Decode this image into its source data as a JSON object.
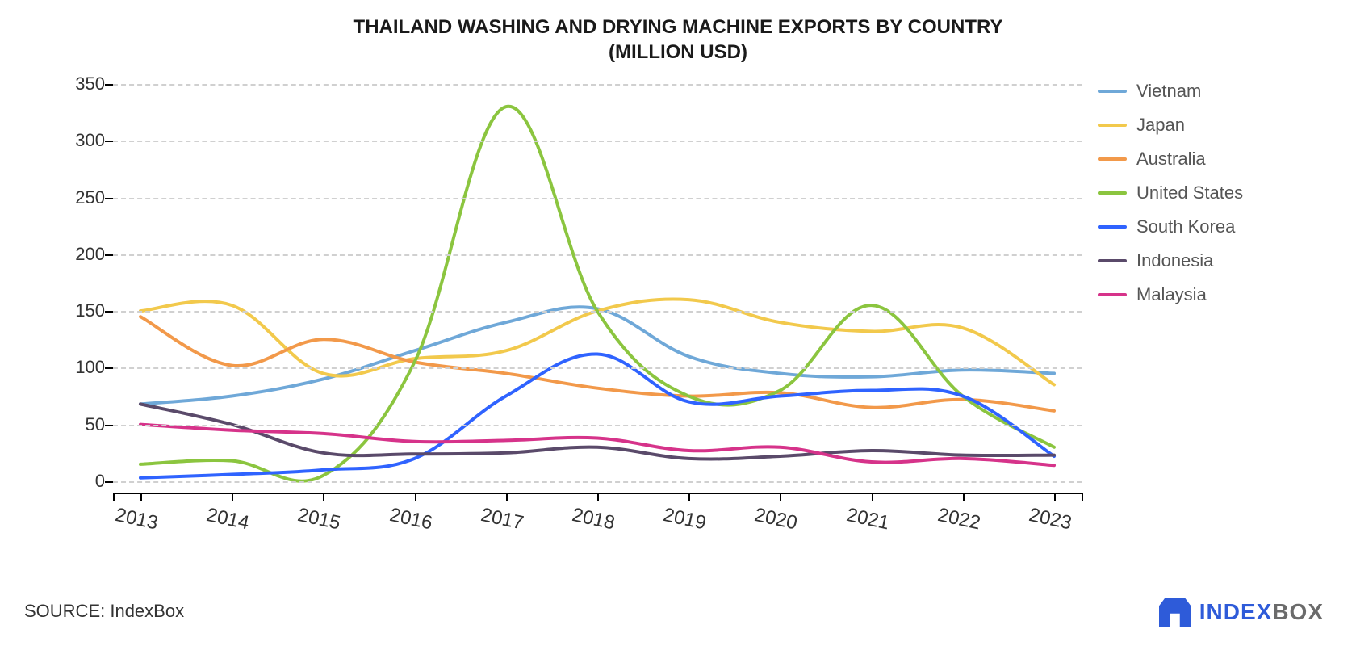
{
  "title_line1": "THAILAND WASHING AND DRYING MACHINE EXPORTS BY COUNTRY",
  "title_line2": "(MILLION USD)",
  "title_fontsize": 24,
  "title_color": "#1a1a1a",
  "source_label": "SOURCE: IndexBox",
  "logo": {
    "brand_a": "INDEX",
    "brand_b": "BOX",
    "color_a": "#2e5bd9",
    "color_b": "#6b6b6b"
  },
  "chart": {
    "type": "line",
    "background_color": "#ffffff",
    "grid_color": "#d0d0d0",
    "grid_dash": "6,6",
    "axis_color": "#000000",
    "line_width": 4,
    "smooth": true,
    "x_labels": [
      "2013",
      "2014",
      "2015",
      "2016",
      "2017",
      "2018",
      "2019",
      "2020",
      "2021",
      "2022",
      "2023"
    ],
    "x_label_fontsize": 24,
    "x_label_rotation_deg": 12,
    "y_ticks": [
      0,
      50,
      100,
      150,
      200,
      250,
      300,
      350
    ],
    "y_tick_fontsize": 22,
    "ylim": [
      -10,
      360
    ],
    "legend_fontsize": 22,
    "legend_position": "right",
    "series": [
      {
        "name": "Vietnam",
        "color": "#6fa8d8",
        "values": [
          68,
          75,
          90,
          115,
          140,
          152,
          110,
          95,
          92,
          98,
          95
        ]
      },
      {
        "name": "Japan",
        "color": "#f2c94c",
        "values": [
          150,
          155,
          95,
          108,
          115,
          150,
          160,
          140,
          132,
          135,
          85
        ]
      },
      {
        "name": "Australia",
        "color": "#f2994a",
        "values": [
          145,
          102,
          125,
          105,
          95,
          82,
          75,
          78,
          65,
          72,
          62
        ]
      },
      {
        "name": "United States",
        "color": "#8bc53f",
        "values": [
          15,
          18,
          5,
          105,
          330,
          150,
          75,
          80,
          155,
          75,
          30
        ]
      },
      {
        "name": "South Korea",
        "color": "#2f63ff",
        "values": [
          3,
          6,
          10,
          20,
          75,
          112,
          70,
          75,
          80,
          75,
          22
        ]
      },
      {
        "name": "Indonesia",
        "color": "#5a4a6a",
        "values": [
          68,
          50,
          25,
          24,
          25,
          30,
          20,
          22,
          27,
          23,
          23
        ]
      },
      {
        "name": "Malaysia",
        "color": "#d6338a",
        "values": [
          50,
          45,
          42,
          35,
          36,
          38,
          27,
          30,
          17,
          20,
          14
        ]
      }
    ]
  }
}
